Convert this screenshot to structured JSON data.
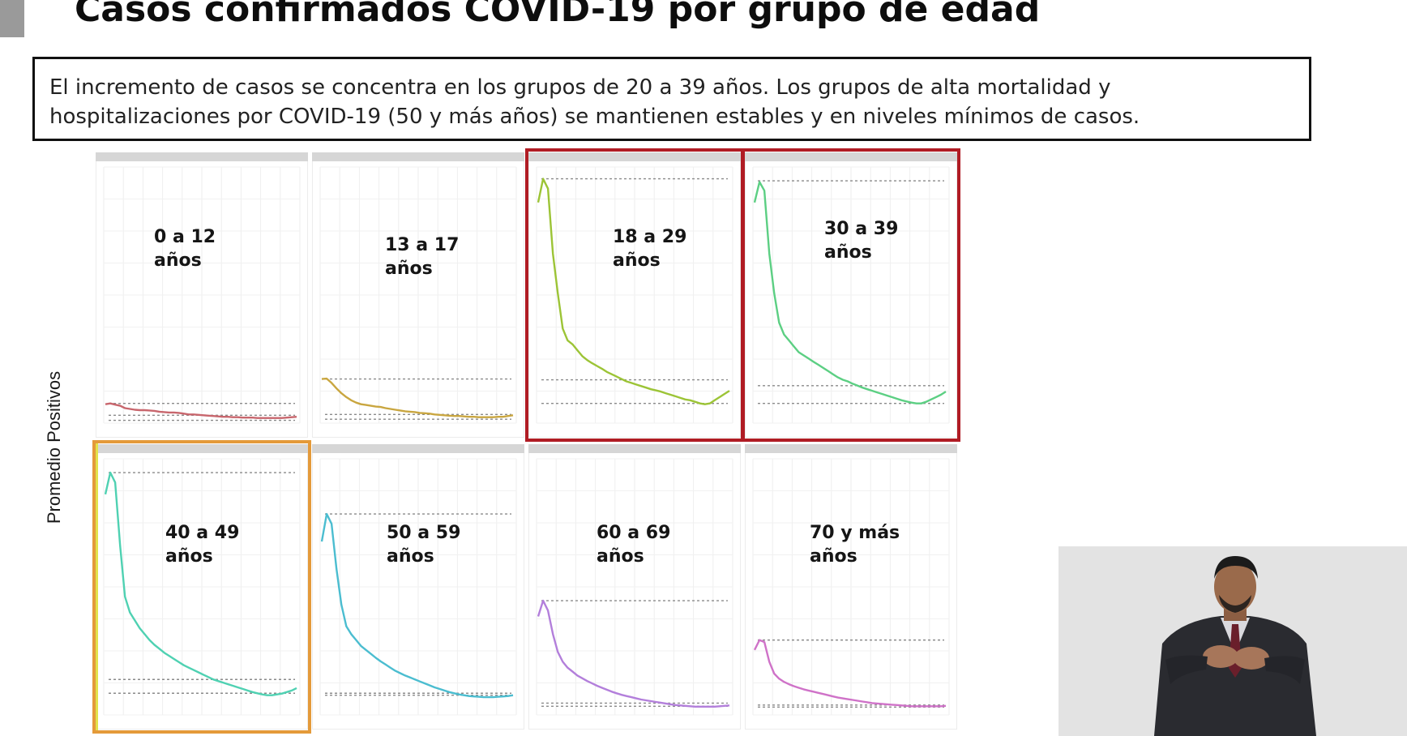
{
  "page": {
    "title": "Casos confirmados COVID-19 por grupo de edad",
    "summary_line1": "El incremento de casos se concentra en los grupos de 20 a 39 años. Los grupos de alta mortalidad y",
    "summary_line2": "hospitalizaciones por COVID-19 (50 y más años) se mantienen estables y en niveles mínimos de casos."
  },
  "chart_data": {
    "type": "line",
    "layout": "small-multiples 2x4",
    "ylabel": "Promedio Positivos",
    "xlabel": "",
    "grid": true,
    "ylim": [
      0,
      650
    ],
    "x": [
      0,
      1,
      2,
      3,
      4,
      5,
      6,
      7,
      8,
      9,
      10,
      11,
      12,
      13,
      14,
      15,
      16,
      17,
      18,
      19,
      20,
      21,
      22,
      23,
      24,
      25,
      26,
      27,
      28,
      29,
      30,
      31,
      32,
      33,
      34,
      35,
      36,
      37,
      38,
      39
    ],
    "highlight_colors": {
      "red": "#b01c24",
      "orange": "#e49a3a"
    },
    "panels": [
      {
        "label": "0 a 12\naños",
        "color": "#c8666d",
        "highlight": "",
        "ref_values": [
          50,
          20,
          7
        ],
        "values": [
          48,
          50,
          47,
          44,
          38,
          36,
          34,
          33,
          33,
          32,
          31,
          29,
          28,
          27,
          27,
          26,
          24,
          22,
          22,
          21,
          20,
          19,
          18,
          17,
          16,
          16,
          15,
          15,
          14,
          14,
          14,
          13,
          13,
          13,
          13,
          13,
          13,
          14,
          15,
          16
        ]
      },
      {
        "label": "13 a 17\naños",
        "color": "#c9a640",
        "highlight": "",
        "ref_values": [
          112,
          22,
          10
        ],
        "values": [
          112,
          113,
          102,
          88,
          76,
          66,
          58,
          52,
          48,
          46,
          44,
          42,
          41,
          38,
          36,
          34,
          32,
          30,
          29,
          28,
          26,
          25,
          24,
          22,
          21,
          20,
          19,
          18,
          18,
          17,
          16,
          16,
          15,
          15,
          15,
          15,
          16,
          16,
          18,
          20
        ]
      },
      {
        "label": "18 a 29\naños",
        "color": "#9cc436",
        "highlight": "red",
        "ref_values": [
          620,
          110,
          50
        ],
        "values": [
          560,
          620,
          595,
          430,
          330,
          240,
          210,
          200,
          185,
          170,
          160,
          152,
          145,
          138,
          130,
          124,
          118,
          112,
          106,
          102,
          98,
          94,
          90,
          86,
          83,
          80,
          76,
          72,
          68,
          64,
          60,
          58,
          54,
          50,
          48,
          50,
          58,
          66,
          74,
          82
        ]
      },
      {
        "label": "30 a 39\naños",
        "color": "#5ccf83",
        "highlight": "red",
        "ref_values": [
          615,
          95,
          50
        ],
        "values": [
          560,
          612,
          590,
          430,
          330,
          255,
          225,
          210,
          195,
          180,
          172,
          164,
          156,
          148,
          140,
          132,
          124,
          116,
          110,
          106,
          100,
          95,
          90,
          86,
          82,
          78,
          74,
          70,
          66,
          62,
          58,
          55,
          52,
          50,
          50,
          54,
          60,
          66,
          72,
          80
        ]
      },
      {
        "label": "40 a 49\naños",
        "color": "#4fd1b2",
        "highlight": "orange",
        "ref_values": [
          615,
          90,
          55
        ],
        "values": [
          560,
          615,
          590,
          430,
          300,
          260,
          240,
          220,
          205,
          190,
          178,
          168,
          158,
          150,
          142,
          134,
          126,
          120,
          114,
          108,
          102,
          96,
          90,
          86,
          82,
          78,
          74,
          70,
          66,
          62,
          58,
          55,
          52,
          50,
          50,
          52,
          54,
          58,
          62,
          68
        ]
      },
      {
        "label": "50 a 59\naños",
        "color": "#4bbdd0",
        "highlight": "",
        "ref_values": [
          510,
          55,
          50
        ],
        "values": [
          440,
          510,
          485,
          370,
          280,
          225,
          205,
          190,
          175,
          165,
          155,
          145,
          136,
          128,
          120,
          112,
          106,
          100,
          95,
          90,
          85,
          80,
          75,
          70,
          66,
          62,
          58,
          55,
          52,
          50,
          48,
          47,
          46,
          45,
          45,
          45,
          46,
          47,
          48,
          50
        ]
      },
      {
        "label": "60 a 69\naños",
        "color": "#b37fdb",
        "highlight": "",
        "ref_values": [
          290,
          30,
          22
        ],
        "values": [
          250,
          290,
          265,
          205,
          160,
          135,
          120,
          110,
          100,
          93,
          86,
          80,
          74,
          69,
          64,
          59,
          55,
          51,
          48,
          45,
          42,
          39,
          37,
          35,
          33,
          31,
          29,
          27,
          25,
          24,
          23,
          22,
          21,
          21,
          21,
          21,
          21,
          22,
          23,
          24
        ]
      },
      {
        "label": "70 y más\naños",
        "color": "#cf72c8",
        "highlight": "",
        "ref_values": [
          190,
          25,
          20
        ],
        "values": [
          165,
          190,
          185,
          135,
          105,
          92,
          84,
          78,
          73,
          69,
          65,
          62,
          59,
          56,
          53,
          50,
          47,
          44,
          42,
          40,
          38,
          36,
          34,
          32,
          30,
          29,
          28,
          27,
          26,
          25,
          24,
          23,
          22,
          22,
          22,
          22,
          22,
          22,
          22,
          23
        ]
      }
    ]
  }
}
